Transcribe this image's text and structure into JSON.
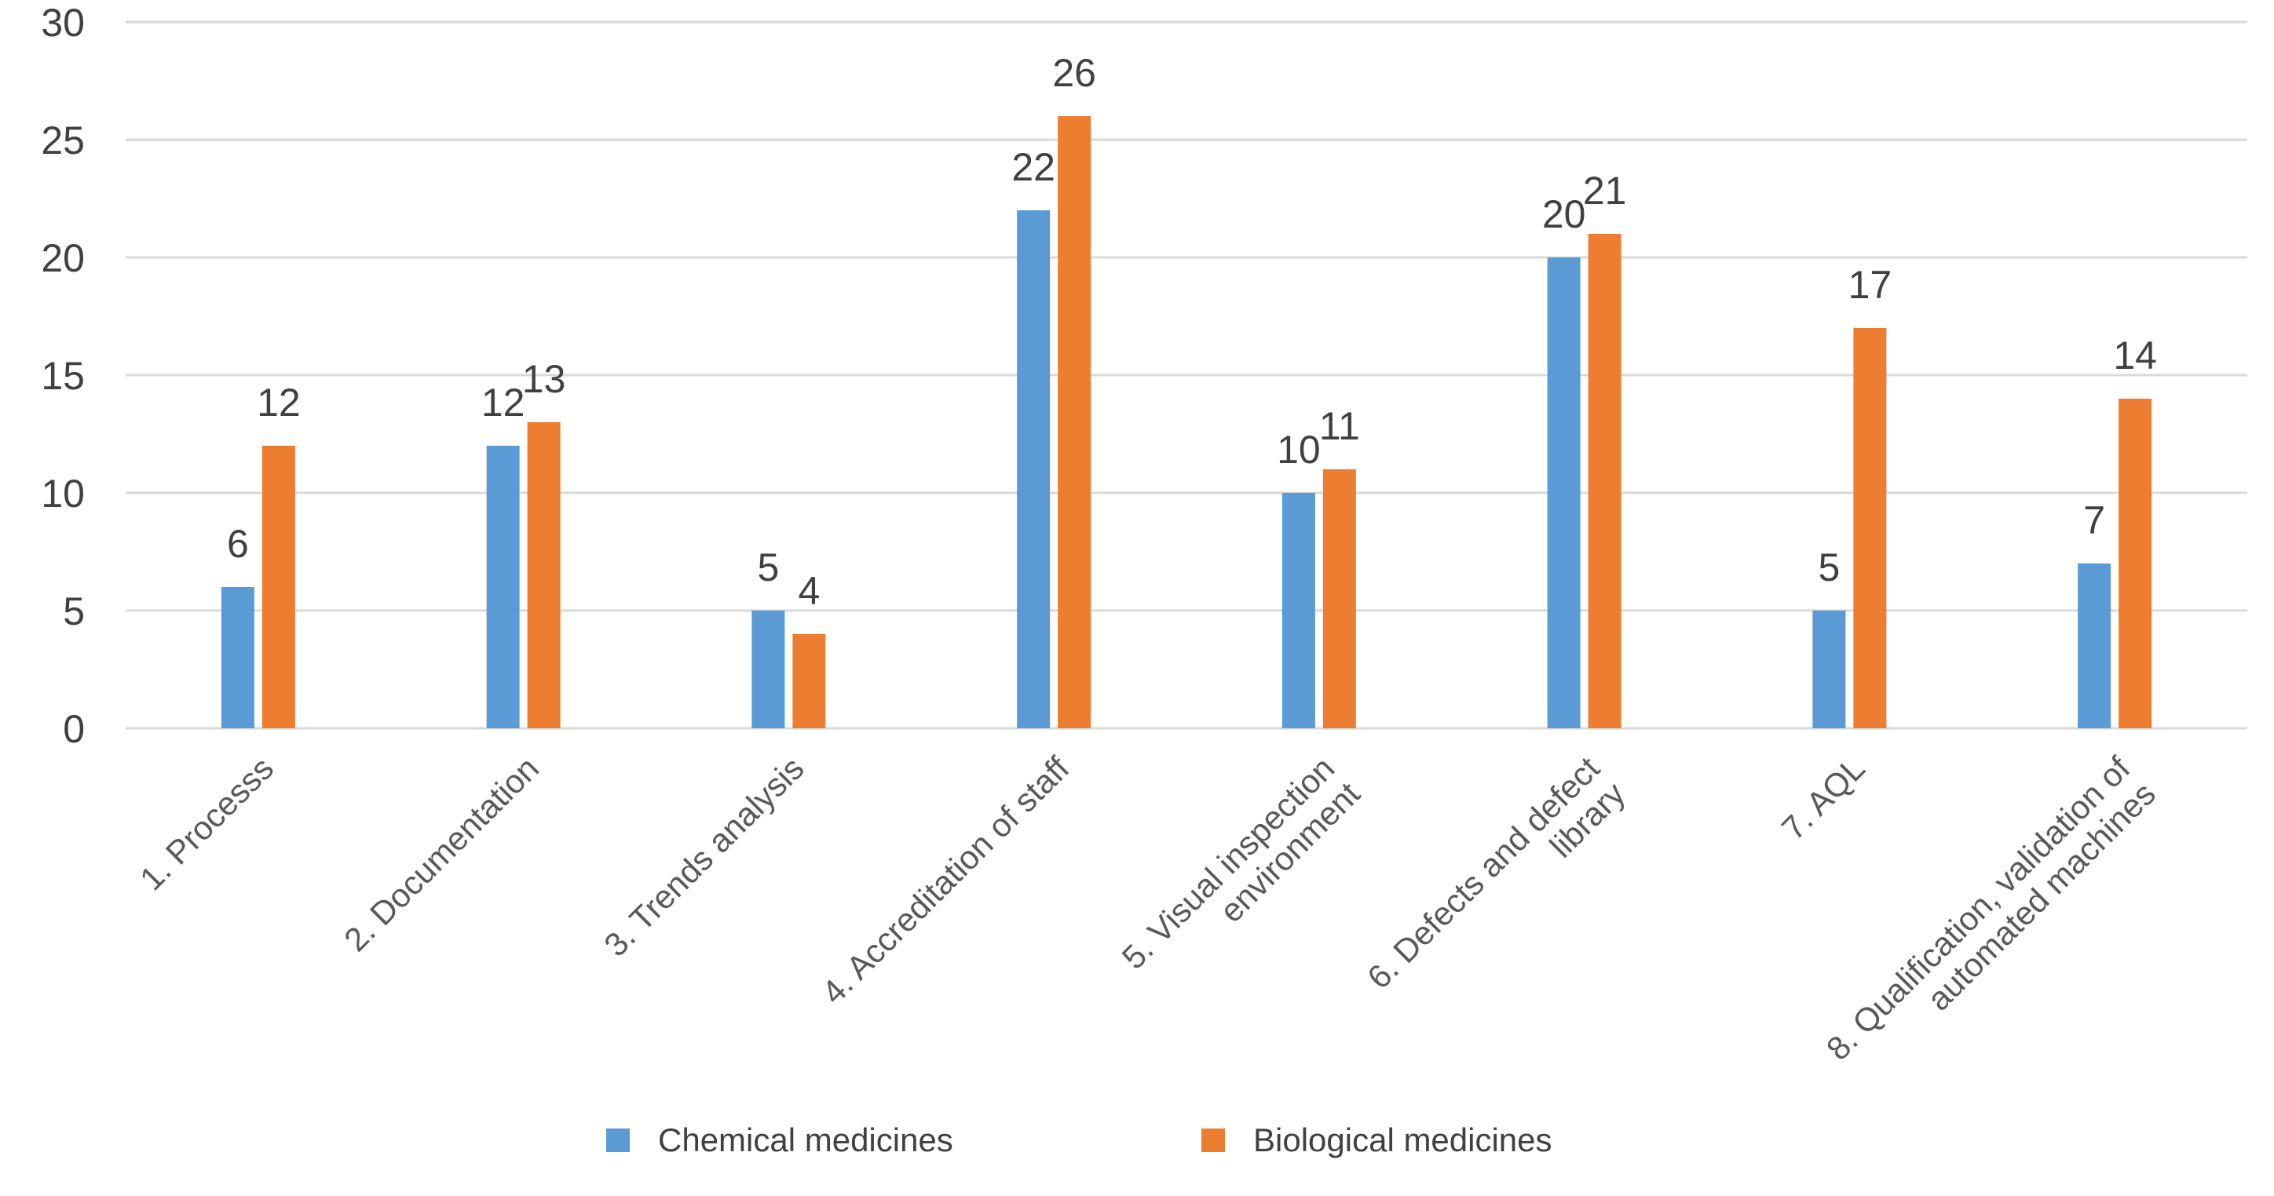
{
  "chart_data": {
    "type": "bar",
    "title": "",
    "xlabel": "",
    "ylabel": "",
    "ylim": [
      0,
      30
    ],
    "yticks": [
      0,
      5,
      10,
      15,
      20,
      25,
      30
    ],
    "grid": true,
    "legend_position": "bottom",
    "categories": [
      [
        "1. Processs"
      ],
      [
        "2. Documentation"
      ],
      [
        "3. Trends analysis"
      ],
      [
        "4. Accreditation of staff"
      ],
      [
        "5. Visual inspection",
        "environment"
      ],
      [
        "6. Defects and defect",
        "library"
      ],
      [
        "7. AQL"
      ],
      [
        "8. Qualification, validation of",
        "automated machines"
      ]
    ],
    "series": [
      {
        "name": "Chemical medicines",
        "color": "#5B9BD5",
        "values": [
          6,
          12,
          5,
          22,
          10,
          20,
          5,
          7
        ]
      },
      {
        "name": "Biological medicines",
        "color": "#ED7D31",
        "values": [
          12,
          13,
          4,
          26,
          11,
          21,
          17,
          14
        ]
      }
    ],
    "gridline_color": "#D9D9D9"
  }
}
